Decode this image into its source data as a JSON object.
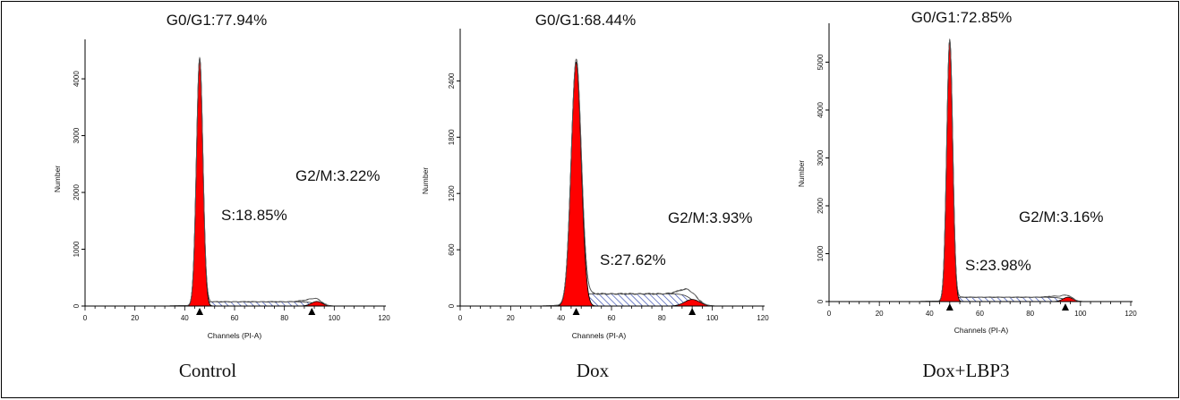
{
  "chart_data": [
    {
      "type": "area",
      "caption": "Control",
      "xlabel": "Channels (PI-A)",
      "ylabel": "Number",
      "xlim": [
        0,
        120
      ],
      "ylim": [
        0,
        4600
      ],
      "xticks": [
        "0",
        "20",
        "40",
        "60",
        "80",
        "100",
        "120"
      ],
      "yticks": [
        0,
        1000,
        2000,
        3000,
        4000
      ],
      "annotations": {
        "g0g1": "G0/G1:77.94%",
        "s": "S:18.85%",
        "g2m": "G2/M:3.22%"
      },
      "g1_peak": {
        "channel": 46,
        "height": 4350,
        "width": 1.3
      },
      "g2_peak": {
        "channel": 93,
        "height": 80,
        "width": 2.2
      },
      "s_phase": {
        "start": 47,
        "end": 93,
        "level": 75
      },
      "markers": [
        46,
        91
      ],
      "colors": {
        "peak": "#ff0000",
        "s_hatch": "#3a4fb0"
      }
    },
    {
      "type": "area",
      "caption": "Dox",
      "xlabel": "Channels (PI-A)",
      "ylabel": "Number",
      "xlim": [
        0,
        120
      ],
      "ylim": [
        0,
        2900
      ],
      "xticks": [
        "0",
        "20",
        "40",
        "60",
        "80",
        "100",
        "120"
      ],
      "yticks": [
        0,
        600,
        1200,
        1800,
        2400
      ],
      "annotations": {
        "g0g1": "G0/G1:68.44%",
        "s": "S:27.62%",
        "g2m": "G2/M:3.93%"
      },
      "g1_peak": {
        "channel": 46,
        "height": 2600,
        "width": 2.0
      },
      "g2_peak": {
        "channel": 92,
        "height": 70,
        "width": 3.0
      },
      "s_phase": {
        "start": 47,
        "end": 92,
        "level": 130
      },
      "markers": [
        46,
        92
      ],
      "colors": {
        "peak": "#ff0000",
        "s_hatch": "#3a4fb0"
      }
    },
    {
      "type": "area",
      "caption": "Dox+LBP3",
      "xlabel": "Channels (PI-A)",
      "ylabel": "Number",
      "xlim": [
        0,
        120
      ],
      "ylim": [
        0,
        5700
      ],
      "xticks": [
        "0",
        "20",
        "40",
        "60",
        "80",
        "100",
        "120"
      ],
      "yticks": [
        0,
        1000,
        2000,
        3000,
        4000,
        5000
      ],
      "annotations": {
        "g0g1": "G0/G1:72.85%",
        "s": "S:23.98%",
        "g2m": "G2/M:3.16%"
      },
      "g1_peak": {
        "channel": 48,
        "height": 5450,
        "width": 1.2
      },
      "g2_peak": {
        "channel": 95,
        "height": 90,
        "width": 2.0
      },
      "s_phase": {
        "start": 49,
        "end": 94,
        "level": 90
      },
      "markers": [
        48,
        94
      ],
      "colors": {
        "peak": "#ff0000",
        "s_hatch": "#3a4fb0"
      }
    }
  ]
}
